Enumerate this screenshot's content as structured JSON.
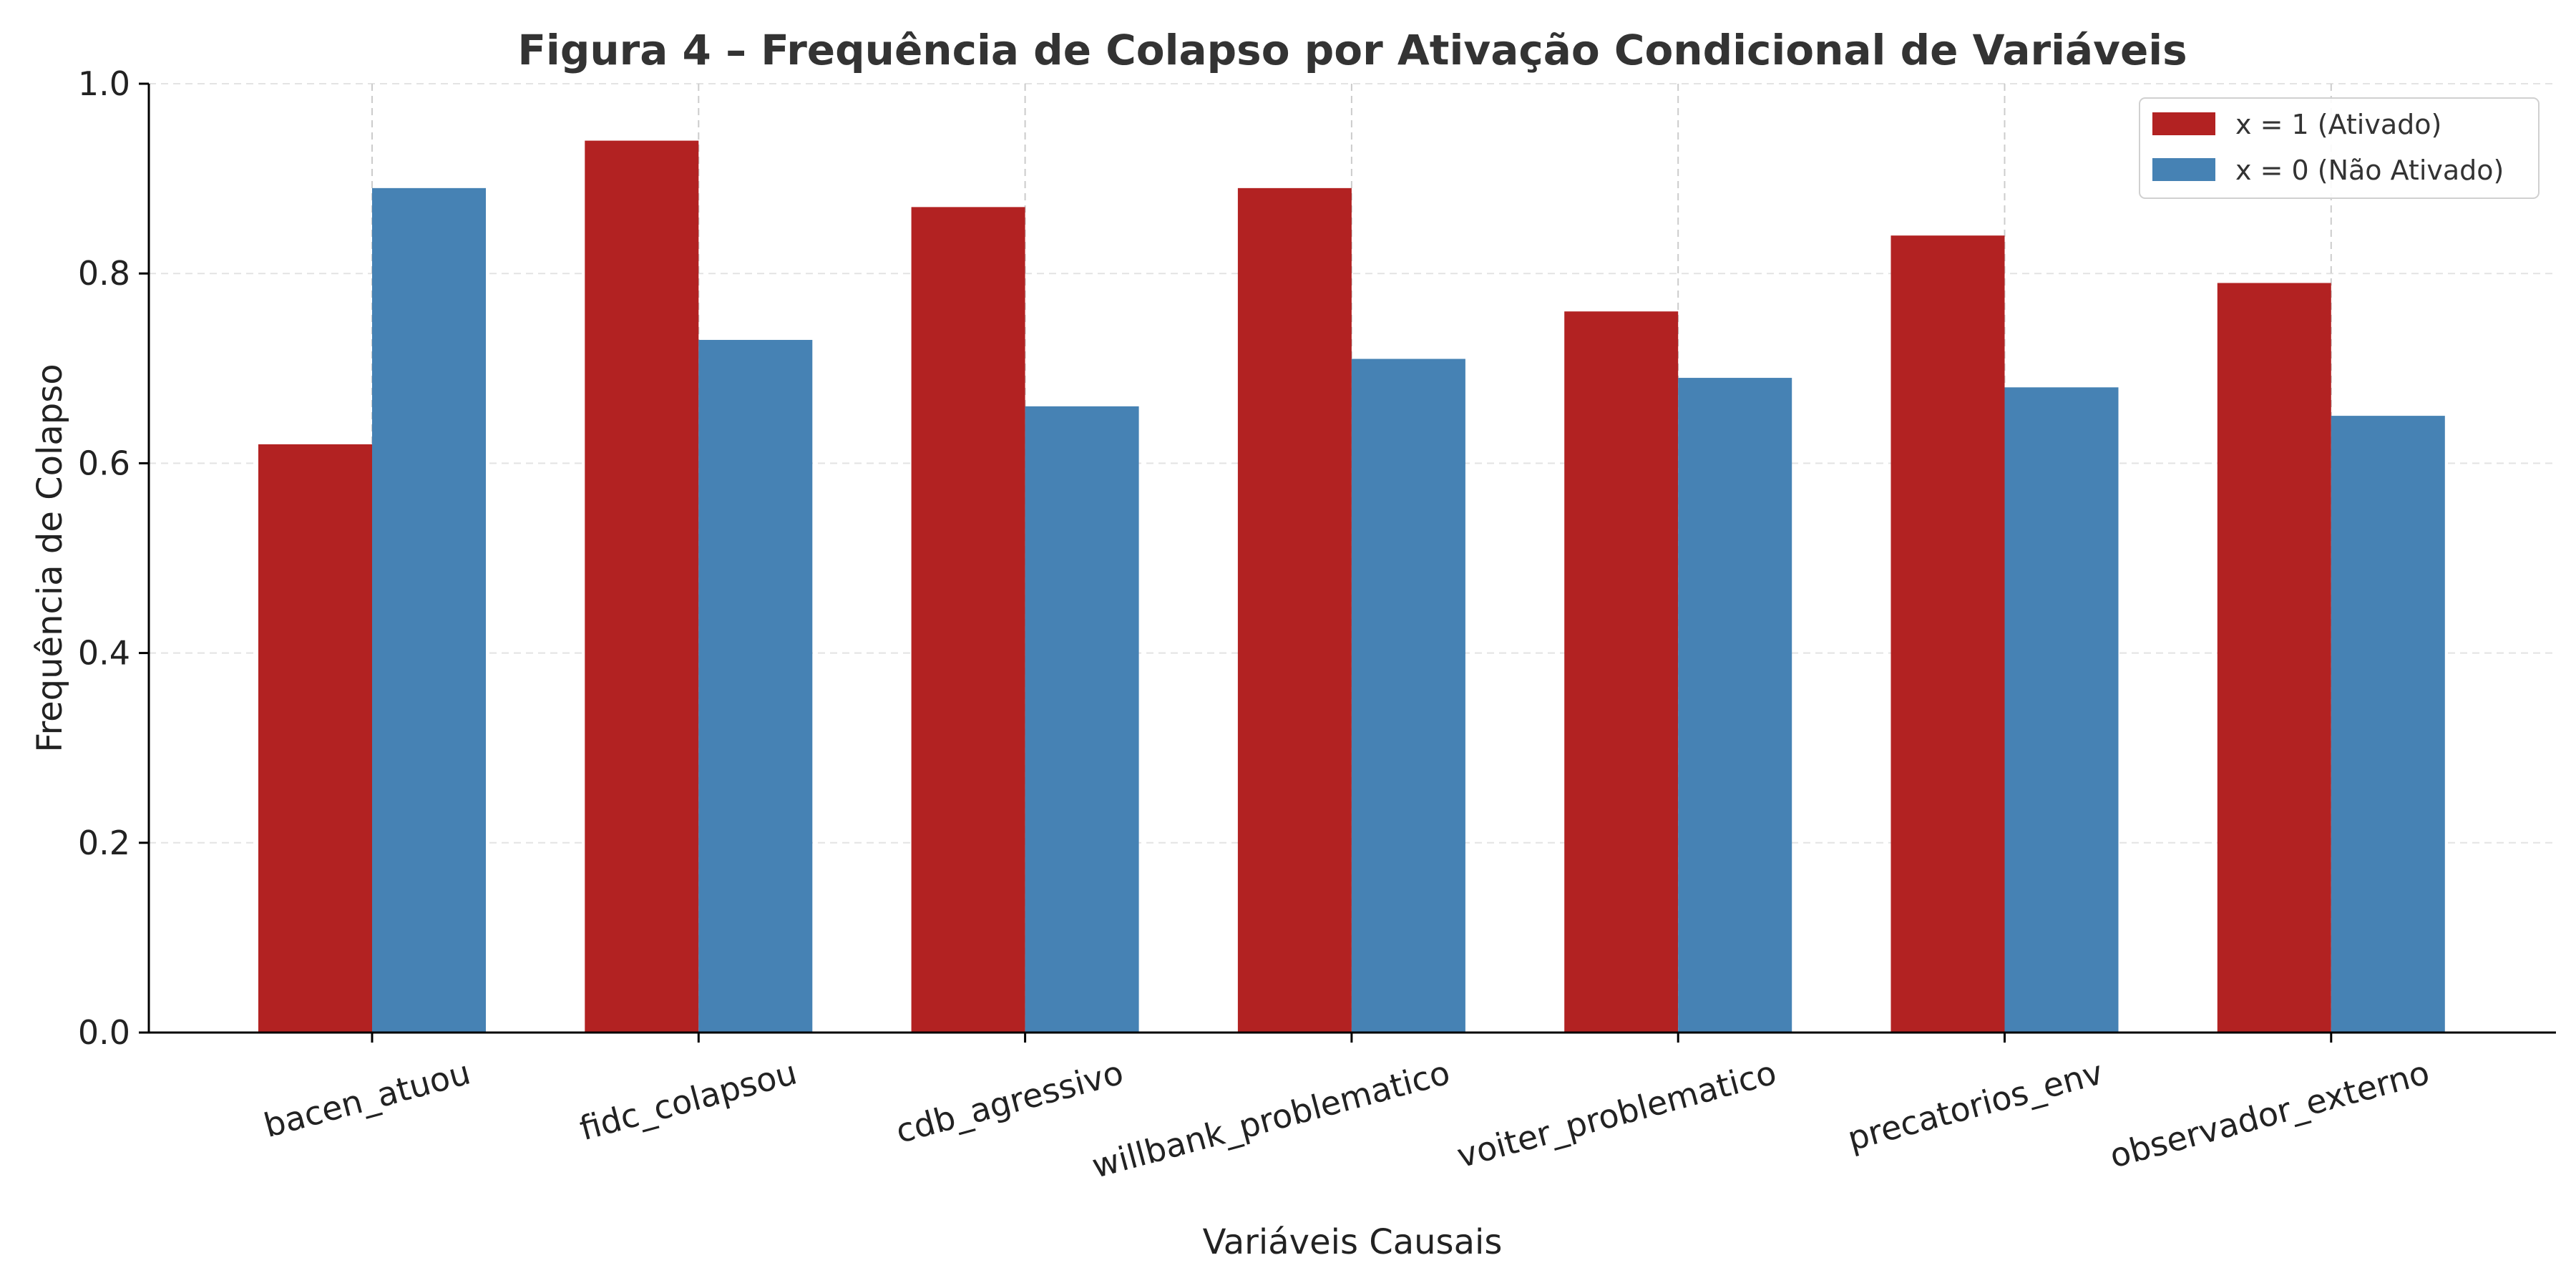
{
  "chart_data": {
    "type": "bar",
    "title": "Figura 4 – Frequência de Colapso por Ativação Condicional de Variáveis",
    "xlabel": "Variáveis Causais",
    "ylabel": "Frequência de Colapso",
    "ylim": [
      0,
      1.0
    ],
    "yticks": [
      "0.0",
      "0.2",
      "0.4",
      "0.6",
      "0.8",
      "1.0"
    ],
    "categories": [
      "bacen_atuou",
      "fidc_colapsou",
      "cdb_agressivo",
      "willbank_problematico",
      "voiter_problematico",
      "precatorios_env",
      "observador_externo"
    ],
    "series": [
      {
        "name": "x = 1 (Ativado)",
        "color": "#b22222",
        "values": [
          0.62,
          0.94,
          0.87,
          0.89,
          0.76,
          0.84,
          0.79
        ]
      },
      {
        "name": "x = 0 (Não Ativado)",
        "color": "#4682b4",
        "values": [
          0.89,
          0.73,
          0.66,
          0.71,
          0.69,
          0.68,
          0.65
        ]
      }
    ],
    "grid": true,
    "legend_position": "top-right"
  }
}
